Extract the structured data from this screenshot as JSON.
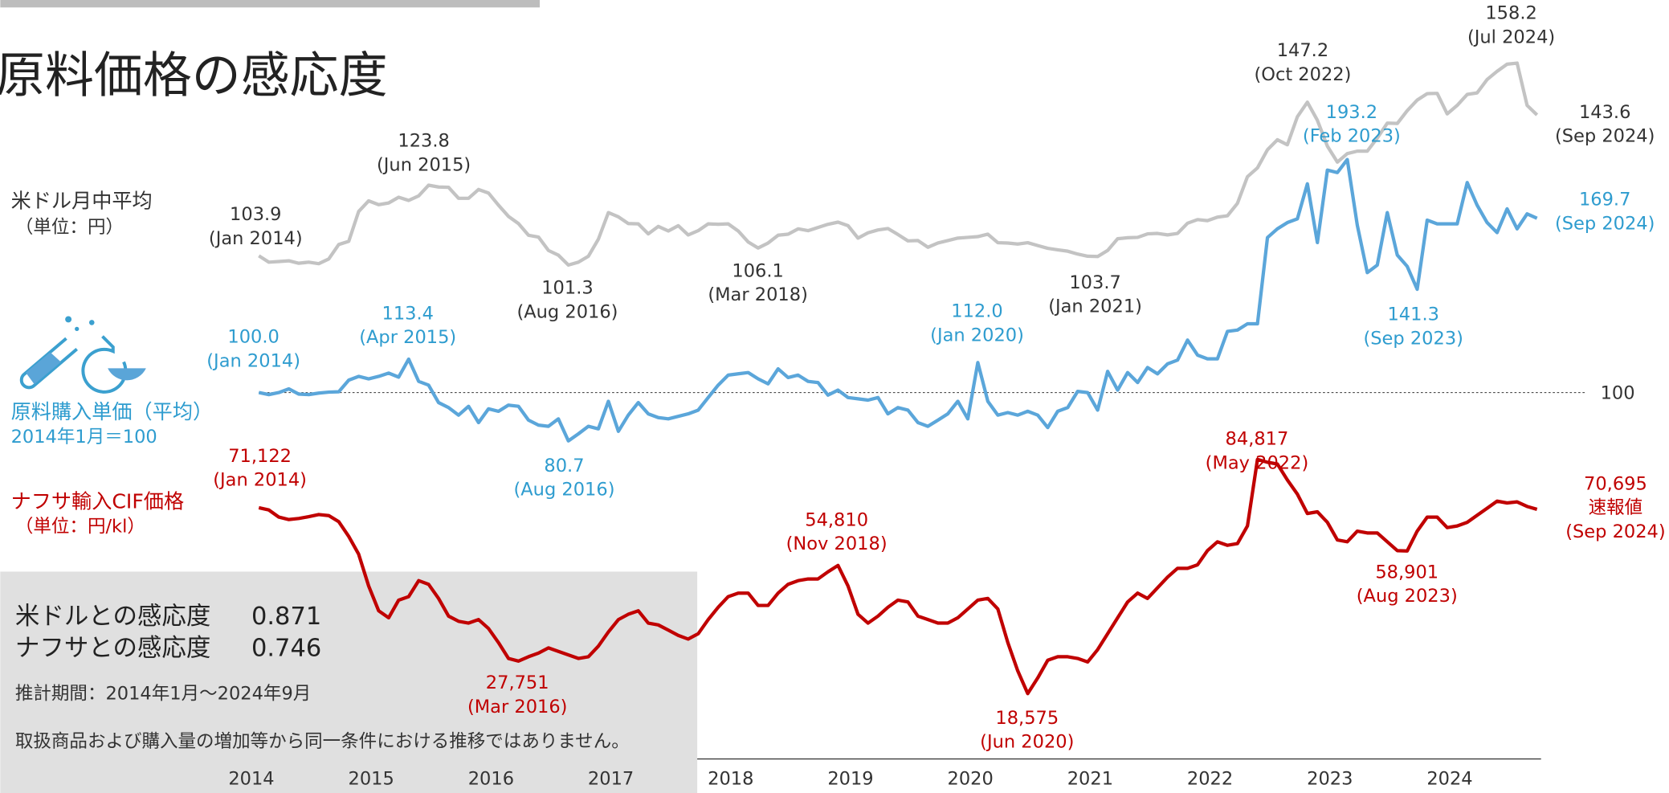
{
  "chart_data": {
    "type": "line",
    "title": "原料価格の感応度",
    "x": [
      "2014-01",
      "2014-02",
      "2014-03",
      "2014-04",
      "2014-05",
      "2014-06",
      "2014-07",
      "2014-08",
      "2014-09",
      "2014-10",
      "2014-11",
      "2014-12",
      "2015-01",
      "2015-02",
      "2015-03",
      "2015-04",
      "2015-05",
      "2015-06",
      "2015-07",
      "2015-08",
      "2015-09",
      "2015-10",
      "2015-11",
      "2015-12",
      "2016-01",
      "2016-02",
      "2016-03",
      "2016-04",
      "2016-05",
      "2016-06",
      "2016-07",
      "2016-08",
      "2016-09",
      "2016-10",
      "2016-11",
      "2016-12",
      "2017-01",
      "2017-02",
      "2017-03",
      "2017-04",
      "2017-05",
      "2017-06",
      "2017-07",
      "2017-08",
      "2017-09",
      "2017-10",
      "2017-11",
      "2017-12",
      "2018-01",
      "2018-02",
      "2018-03",
      "2018-04",
      "2018-05",
      "2018-06",
      "2018-07",
      "2018-08",
      "2018-09",
      "2018-10",
      "2018-11",
      "2018-12",
      "2019-01",
      "2019-02",
      "2019-03",
      "2019-04",
      "2019-05",
      "2019-06",
      "2019-07",
      "2019-08",
      "2019-09",
      "2019-10",
      "2019-11",
      "2019-12",
      "2020-01",
      "2020-02",
      "2020-03",
      "2020-04",
      "2020-05",
      "2020-06",
      "2020-07",
      "2020-08",
      "2020-09",
      "2020-10",
      "2020-11",
      "2020-12",
      "2021-01",
      "2021-02",
      "2021-03",
      "2021-04",
      "2021-05",
      "2021-06",
      "2021-07",
      "2021-08",
      "2021-09",
      "2021-10",
      "2021-11",
      "2021-12",
      "2022-01",
      "2022-02",
      "2022-03",
      "2022-04",
      "2022-05",
      "2022-06",
      "2022-07",
      "2022-08",
      "2022-09",
      "2022-10",
      "2022-11",
      "2022-12",
      "2023-01",
      "2023-02",
      "2023-03",
      "2023-04",
      "2023-05",
      "2023-06",
      "2023-07",
      "2023-08",
      "2023-09",
      "2023-10",
      "2023-11",
      "2023-12",
      "2024-01",
      "2024-02",
      "2024-03",
      "2024-04",
      "2024-05",
      "2024-06",
      "2024-07",
      "2024-08",
      "2024-09"
    ],
    "xlim": [
      2014,
      2024.7
    ],
    "xticks": [
      2014,
      2015,
      2016,
      2017,
      2018,
      2019,
      2020,
      2021,
      2022,
      2023,
      2024
    ],
    "baseline": 100,
    "series": [
      {
        "name": "米ドル月中平均",
        "unit": "（単位：円）",
        "color": "#c3c3c3",
        "label_color": "#333333",
        "ylim": [
          -34,
          164
        ],
        "values": [
          103.9,
          102.1,
          102.3,
          102.5,
          101.8,
          102.1,
          101.7,
          103.0,
          107.1,
          108.0,
          116.4,
          119.4,
          118.3,
          118.8,
          120.4,
          119.5,
          120.8,
          123.8,
          123.3,
          123.2,
          120.1,
          120.1,
          122.6,
          121.6,
          118.2,
          115.0,
          113.0,
          109.7,
          109.2,
          105.4,
          104.1,
          101.3,
          102.1,
          103.8,
          108.6,
          116.1,
          114.9,
          113.0,
          112.9,
          110.1,
          112.2,
          110.9,
          112.4,
          109.8,
          111.0,
          112.9,
          112.8,
          112.9,
          110.9,
          107.8,
          106.1,
          107.5,
          109.7,
          110.0,
          111.5,
          111.0,
          111.9,
          112.8,
          113.4,
          112.4,
          108.9,
          110.4,
          111.2,
          111.6,
          109.9,
          108.1,
          108.2,
          106.3,
          107.5,
          108.2,
          108.9,
          109.1,
          109.3,
          110.0,
          107.6,
          107.5,
          107.2,
          107.6,
          106.8,
          106.0,
          105.6,
          105.2,
          104.4,
          103.8,
          103.7,
          105.4,
          108.7,
          109.0,
          109.1,
          110.1,
          110.2,
          109.8,
          110.2,
          113.1,
          114.1,
          113.8,
          114.8,
          115.2,
          118.7,
          126.2,
          128.7,
          133.8,
          136.6,
          135.2,
          143.1,
          147.2,
          142.1,
          134.8,
          130.3,
          132.7,
          133.4,
          133.4,
          137.1,
          141.3,
          141.2,
          144.8,
          147.8,
          149.6,
          149.7,
          143.9,
          146.3,
          149.4,
          149.8,
          153.6,
          155.9,
          157.9,
          158.2,
          146.3,
          143.6
        ],
        "annotations": [
          {
            "lines": [
              "103.9",
              "(Jan 2014)"
            ]
          },
          {
            "lines": [
              "123.8",
              "(Jun 2015)"
            ]
          },
          {
            "lines": [
              "101.3",
              "(Aug 2016)"
            ]
          },
          {
            "lines": [
              "106.1",
              "(Mar 2018)"
            ]
          },
          {
            "lines": [
              "103.7",
              "(Jan 2021)"
            ]
          },
          {
            "lines": [
              "147.2",
              "(Oct 2022)"
            ]
          },
          {
            "lines": [
              "158.2",
              "(Jul 2024)"
            ]
          },
          {
            "lines": [
              "143.6",
              "(Sep 2024)"
            ]
          }
        ]
      },
      {
        "name": "原料購入単価（平均）",
        "unit": "2014年1月＝100",
        "color": "#5ba6da",
        "label_color": "#2e9ccf",
        "ylim": [
          -41,
          240
        ],
        "values": [
          100.0,
          99.2,
          100.0,
          101.5,
          99.4,
          99.2,
          99.8,
          100.2,
          100.3,
          105.0,
          106.5,
          105.5,
          106.5,
          107.8,
          106.2,
          113.4,
          104.5,
          103.0,
          96.0,
          94.0,
          91.0,
          94.5,
          88.0,
          93.5,
          92.5,
          95.0,
          94.5,
          89.0,
          87.0,
          86.5,
          89.5,
          80.7,
          83.5,
          86.5,
          85.5,
          96.5,
          84.5,
          91.0,
          96.0,
          91.5,
          90.0,
          89.5,
          90.5,
          91.5,
          93.0,
          98.0,
          103.0,
          107.0,
          107.5,
          108.0,
          105.5,
          103.5,
          109.5,
          106.0,
          107.0,
          104.5,
          104.0,
          99.0,
          101.0,
          98.0,
          97.5,
          97.0,
          98.0,
          91.5,
          94.0,
          93.0,
          88.0,
          86.5,
          89.0,
          91.5,
          96.5,
          89.5,
          112.0,
          96.5,
          91.0,
          92.0,
          91.0,
          92.5,
          91.0,
          86.0,
          92.5,
          94.0,
          100.5,
          100.0,
          93.0,
          108.5,
          101.0,
          108.0,
          104.0,
          110.0,
          107.5,
          111.5,
          113.0,
          121.0,
          115.0,
          113.5,
          113.5,
          124.5,
          125.0,
          127.5,
          127.5,
          162.0,
          165.5,
          168.0,
          169.5,
          183.5,
          160.0,
          189.0,
          188.0,
          193.2,
          167.0,
          148.0,
          151.0,
          172.0,
          155.0,
          150.5,
          141.3,
          169.0,
          167.5,
          167.5,
          167.5,
          184.0,
          175.0,
          168.0,
          164.0,
          173.5,
          165.5,
          171.5,
          169.7
        ],
        "annotations": [
          {
            "lines": [
              "100.0",
              "(Jan 2014)"
            ]
          },
          {
            "lines": [
              "113.4",
              "(Apr 2015)"
            ]
          },
          {
            "lines": [
              "80.7",
              "(Aug 2016)"
            ]
          },
          {
            "lines": [
              "112.0",
              "(Jan 2020)"
            ]
          },
          {
            "lines": [
              "193.2",
              "(Feb 2023)"
            ]
          },
          {
            "lines": [
              "141.3",
              "(Sep 2023)"
            ]
          },
          {
            "lines": [
              "169.7",
              "(Sep 2024)"
            ]
          }
        ]
      },
      {
        "name": "ナフサ輸入CIF価格",
        "unit": "（単位：円/kl）",
        "color": "#c00000",
        "label_color": "#c00000",
        "ylim": [
          4000,
          202700
        ],
        "values": [
          71122,
          70500,
          68500,
          67800,
          68100,
          68600,
          69200,
          68900,
          67200,
          63000,
          58000,
          49000,
          42000,
          40000,
          45000,
          46000,
          50500,
          49500,
          45500,
          40500,
          39000,
          38500,
          39500,
          37000,
          33000,
          28500,
          27751,
          29000,
          30000,
          31500,
          30500,
          29500,
          28500,
          29000,
          32000,
          36000,
          39500,
          41000,
          42000,
          38500,
          38000,
          36500,
          35000,
          34000,
          35500,
          39500,
          43000,
          46000,
          47000,
          47000,
          43500,
          43500,
          47000,
          49500,
          50500,
          51000,
          51000,
          53000,
          54810,
          49000,
          41000,
          38500,
          40500,
          43000,
          45000,
          44500,
          40500,
          39500,
          38500,
          38500,
          40000,
          42500,
          45000,
          45500,
          42500,
          33000,
          25000,
          18575,
          23000,
          28000,
          29000,
          29000,
          28500,
          27500,
          31000,
          35500,
          40000,
          44500,
          47000,
          45500,
          48500,
          51500,
          54000,
          54000,
          55000,
          59000,
          61500,
          60500,
          61000,
          66000,
          84817,
          84000,
          83500,
          79000,
          75000,
          69500,
          70000,
          67000,
          62000,
          61500,
          64500,
          64000,
          64000,
          61500,
          59000,
          58901,
          64500,
          68500,
          68500,
          65500,
          66000,
          67000,
          69000,
          71000,
          73000,
          72500,
          72800,
          71500,
          70695
        ],
        "annotations": [
          {
            "lines": [
              "71,122",
              "(Jan 2014)"
            ]
          },
          {
            "lines": [
              "27,751",
              "(Mar 2016)"
            ]
          },
          {
            "lines": [
              "54,810",
              "(Nov 2018)"
            ]
          },
          {
            "lines": [
              "18,575",
              "(Jun 2020)"
            ]
          },
          {
            "lines": [
              "84,817",
              "(May 2022)"
            ]
          },
          {
            "lines": [
              "58,901",
              "(Aug 2023)"
            ]
          },
          {
            "lines": [
              "70,695",
              "速報値",
              "(Sep 2024)"
            ]
          }
        ]
      }
    ],
    "panel": {
      "rows": [
        {
          "label": "米ドルとの感応度",
          "value": "0.871"
        },
        {
          "label": "ナフサとの感応度",
          "value": "0.746"
        }
      ],
      "period": "推計期間：2014年1月～2024年9月",
      "note": "取扱商品および購入量の増加等から同一条件における推移ではありません。"
    }
  }
}
